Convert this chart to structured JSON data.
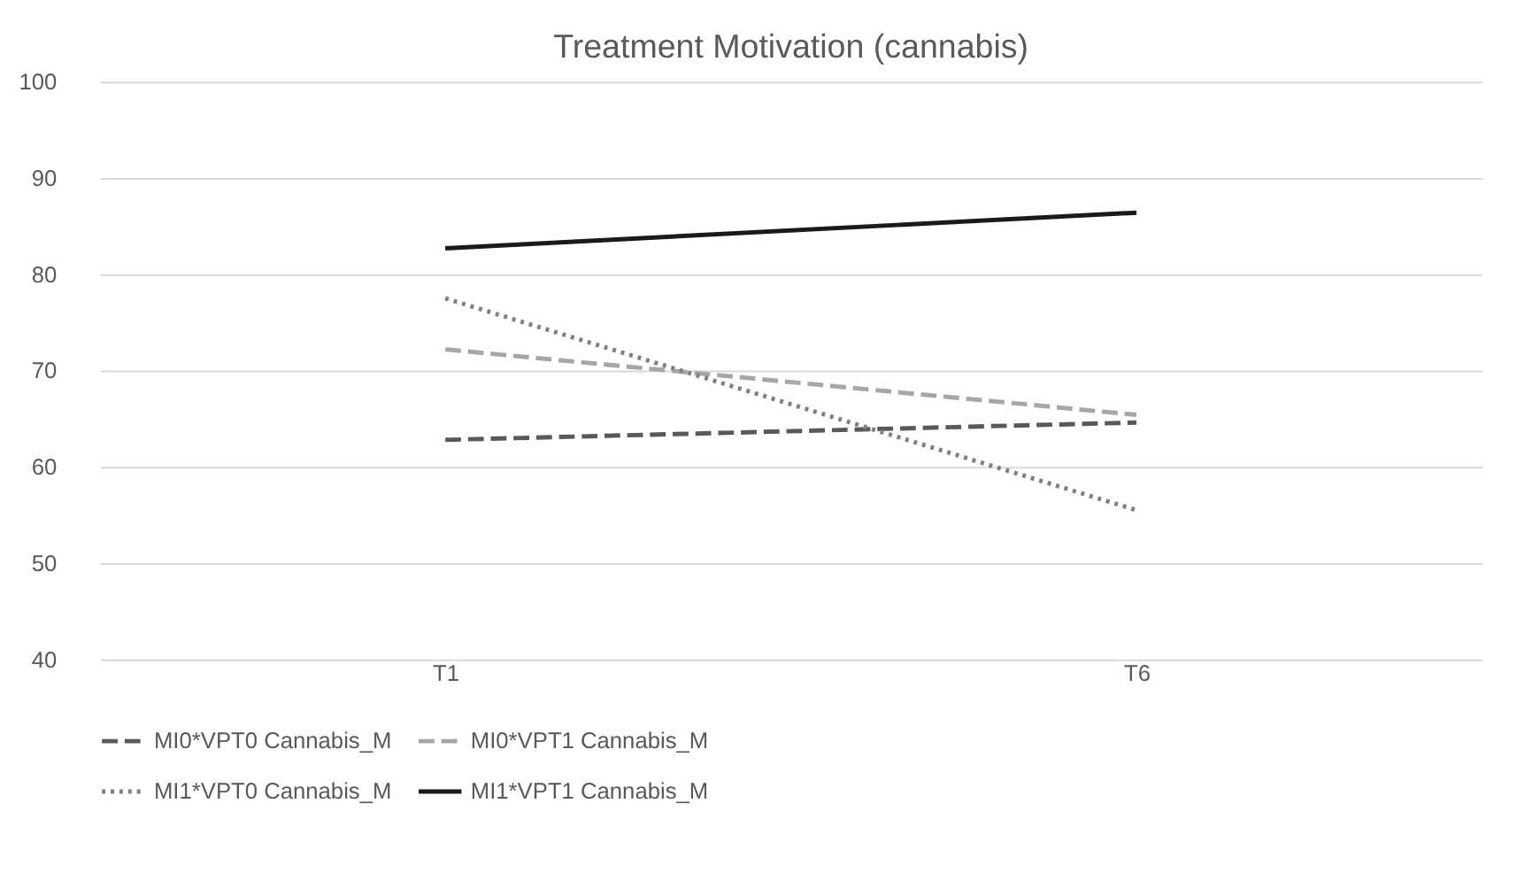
{
  "chart_data": {
    "type": "line",
    "title": "Treatment Motivation (cannabis)",
    "categories": [
      "T1",
      "T6"
    ],
    "series": [
      {
        "name": "MI0*VPT0 Cannabis_M",
        "color": "#595959",
        "line_style": "dashed",
        "values": [
          62.8,
          64.6
        ]
      },
      {
        "name": "MI0*VPT1 Cannabis_M",
        "color": "#a6a6a6",
        "line_style": "dashed",
        "values": [
          72.2,
          65.4
        ]
      },
      {
        "name": "MI1*VPT0 Cannabis_M",
        "color": "#808080",
        "line_style": "dotted",
        "values": [
          77.5,
          55.5
        ]
      },
      {
        "name": "MI1*VPT1 Cannabis_M",
        "color": "#1a1a1a",
        "line_style": "solid",
        "values": [
          82.7,
          86.4
        ]
      }
    ],
    "ylim": [
      40,
      100
    ],
    "yticks": [
      40,
      50,
      60,
      70,
      80,
      90,
      100
    ],
    "grid": "y",
    "legend": "bottom",
    "marker": "none"
  }
}
